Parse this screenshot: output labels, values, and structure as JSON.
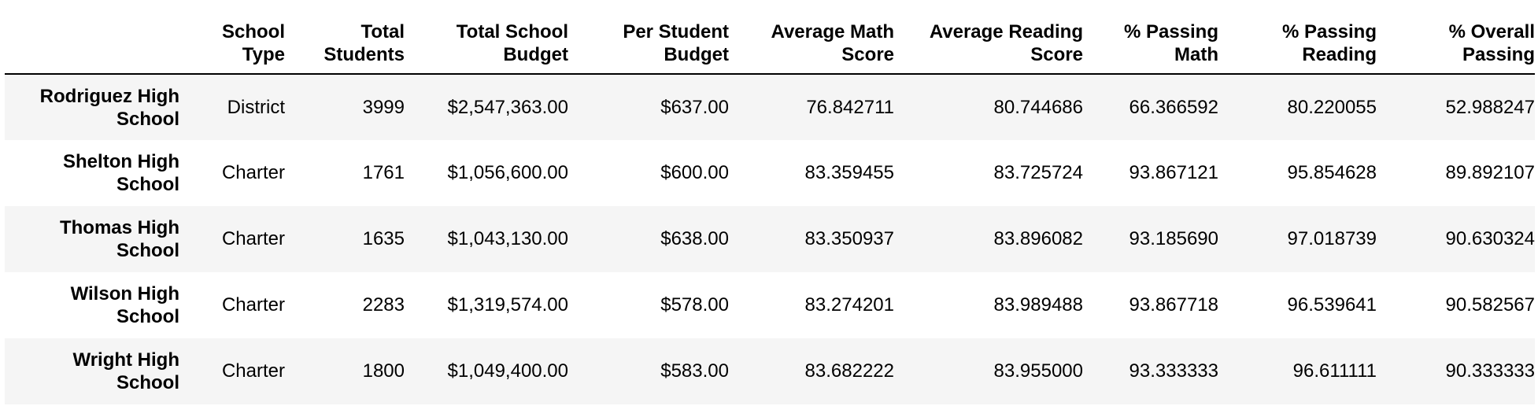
{
  "table": {
    "index_header": "",
    "columns": [
      [
        "School",
        "Type"
      ],
      [
        "Total",
        "Students"
      ],
      [
        "Total School",
        "Budget"
      ],
      [
        "Per Student",
        "Budget"
      ],
      [
        "Average Math",
        "Score"
      ],
      [
        "Average Reading",
        "Score"
      ],
      [
        "% Passing",
        "Math"
      ],
      [
        "% Passing",
        "Reading"
      ],
      [
        "% Overall",
        "Passing"
      ]
    ],
    "rows": [
      {
        "school": [
          "Rodriguez High",
          "School"
        ],
        "values": [
          "District",
          "3999",
          "$2,547,363.00",
          "$637.00",
          "76.842711",
          "80.744686",
          "66.366592",
          "80.220055",
          "52.988247"
        ]
      },
      {
        "school": [
          "Shelton High",
          "School"
        ],
        "values": [
          "Charter",
          "1761",
          "$1,056,600.00",
          "$600.00",
          "83.359455",
          "83.725724",
          "93.867121",
          "95.854628",
          "89.892107"
        ]
      },
      {
        "school": [
          "Thomas High",
          "School"
        ],
        "values": [
          "Charter",
          "1635",
          "$1,043,130.00",
          "$638.00",
          "83.350937",
          "83.896082",
          "93.185690",
          "97.018739",
          "90.630324"
        ]
      },
      {
        "school": [
          "Wilson High",
          "School"
        ],
        "values": [
          "Charter",
          "2283",
          "$1,319,574.00",
          "$578.00",
          "83.274201",
          "83.989488",
          "93.867718",
          "96.539641",
          "90.582567"
        ]
      },
      {
        "school": [
          "Wright High",
          "School"
        ],
        "values": [
          "Charter",
          "1800",
          "$1,049,400.00",
          "$583.00",
          "83.682222",
          "83.955000",
          "93.333333",
          "96.611111",
          "90.333333"
        ]
      }
    ]
  }
}
